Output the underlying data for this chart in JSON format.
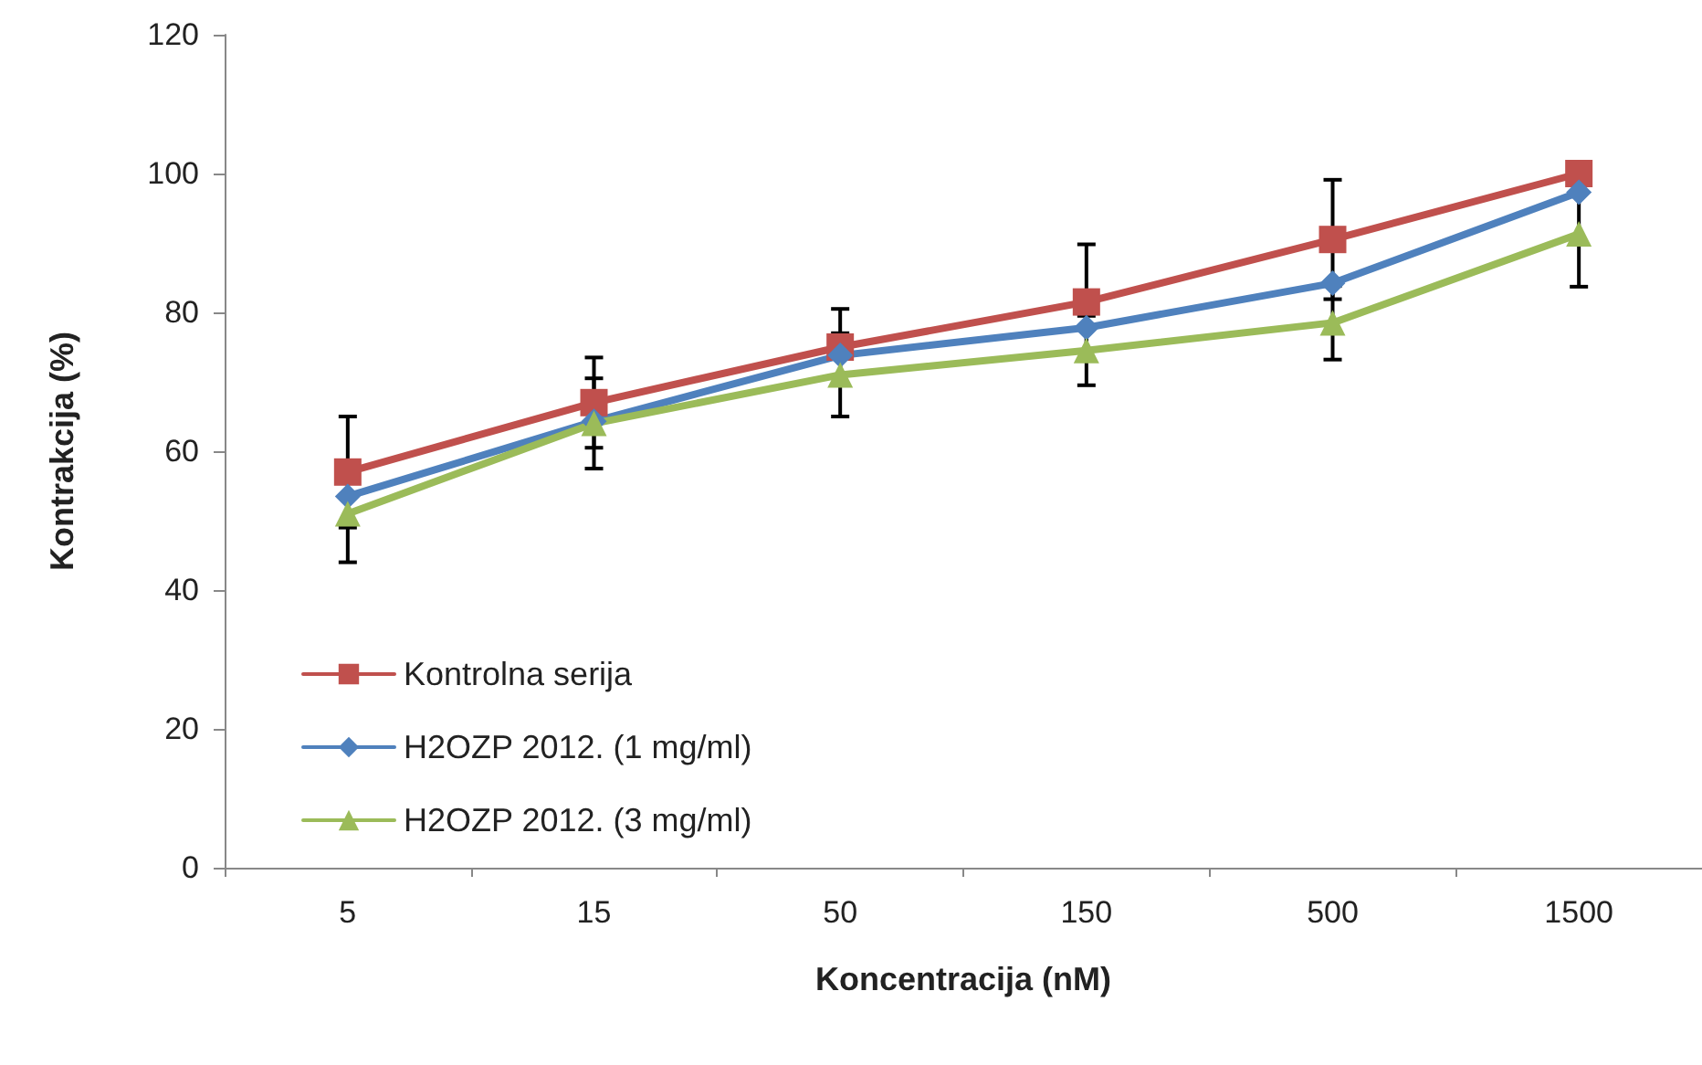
{
  "chart_data": {
    "type": "line",
    "xlabel": "Koncentracija (nM)",
    "ylabel": "Kontrakcija (%)",
    "categories": [
      "5",
      "15",
      "50",
      "150",
      "500",
      "1500"
    ],
    "series": [
      {
        "name": "Kontrolna serija",
        "color": "#c0504d",
        "marker": "square",
        "values": [
          57,
          67,
          75,
          81.5,
          90.5,
          100
        ],
        "errors": [
          8,
          6.5,
          5.5,
          8.3,
          8.6,
          null
        ]
      },
      {
        "name": "H2OZP 2012. (1 mg/ml)",
        "color": "#4f81bd",
        "marker": "diamond",
        "values": [
          53.5,
          64.3,
          73.8,
          77.8,
          84.2,
          97.3
        ]
      },
      {
        "name": "H2OZP 2012. (3 mg/ml)",
        "color": "#9bbb59",
        "marker": "triangle",
        "values": [
          51,
          64,
          71,
          74.5,
          78.5,
          91.3
        ],
        "errors": [
          7,
          6.5,
          6,
          5,
          5.3,
          7.6
        ]
      }
    ],
    "ylim": [
      0,
      120
    ],
    "yticks": [
      0,
      20,
      40,
      60,
      80,
      100,
      120
    ],
    "grid": false,
    "legend": "bottom left"
  }
}
